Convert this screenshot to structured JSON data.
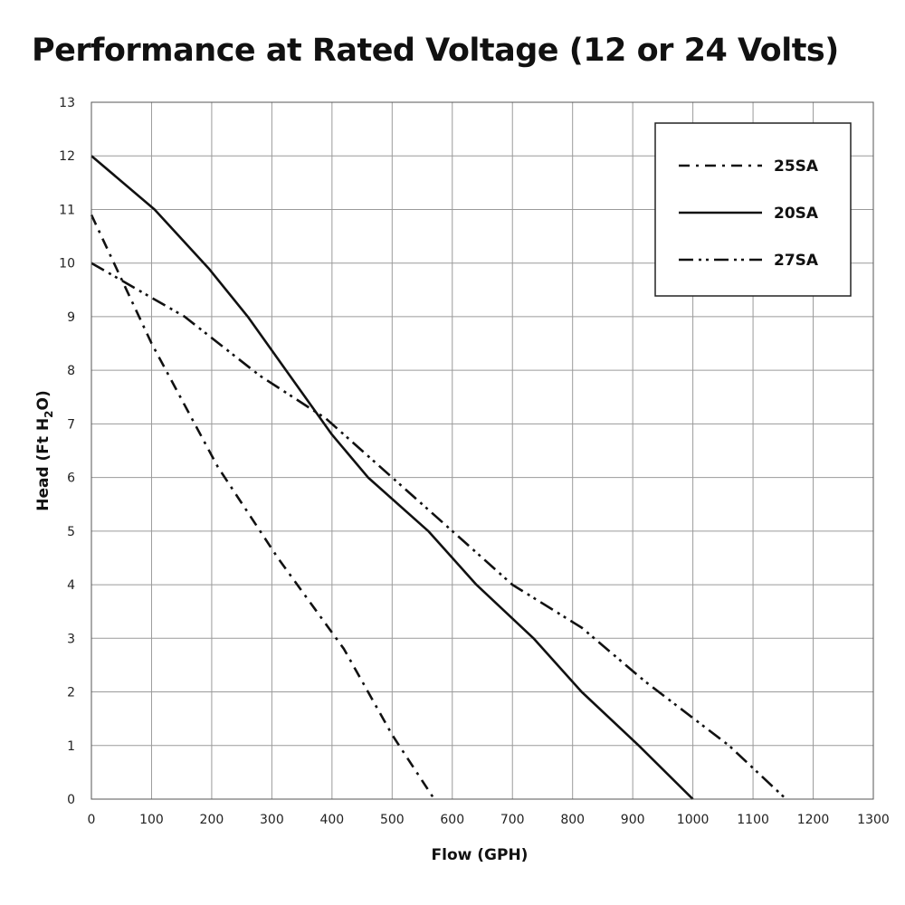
{
  "chart_data": {
    "type": "line",
    "title": "Performance at Rated Voltage (12 or 24 Volts)",
    "xlabel": "Flow (GPH)",
    "ylabel": {
      "prefix": "Head (Ft H",
      "subscript": "2",
      "suffix": "O)"
    },
    "xlim": [
      0,
      1300
    ],
    "ylim": [
      0,
      13
    ],
    "xticks": [
      0,
      100,
      200,
      300,
      400,
      500,
      600,
      700,
      800,
      900,
      1000,
      1100,
      1200,
      1300
    ],
    "yticks": [
      0,
      1,
      2,
      3,
      4,
      5,
      6,
      7,
      8,
      9,
      10,
      11,
      12,
      13
    ],
    "grid": true,
    "legend_position": "top-right",
    "series": [
      {
        "name": "25SA",
        "dash": "dash-dot",
        "points": [
          [
            0,
            10.9
          ],
          [
            100,
            8.5
          ],
          [
            210,
            6.2
          ],
          [
            310,
            4.5
          ],
          [
            420,
            2.8
          ],
          [
            500,
            1.2
          ],
          [
            570,
            0
          ]
        ]
      },
      {
        "name": "20SA",
        "dash": "solid",
        "points": [
          [
            0,
            12
          ],
          [
            105,
            11
          ],
          [
            195,
            9.9
          ],
          [
            260,
            9
          ],
          [
            330,
            7.9
          ],
          [
            400,
            6.8
          ],
          [
            460,
            6
          ],
          [
            560,
            5
          ],
          [
            640,
            4
          ],
          [
            735,
            3
          ],
          [
            815,
            2
          ],
          [
            910,
            1
          ],
          [
            1000,
            0
          ]
        ]
      },
      {
        "name": "27SA",
        "dash": "dash-dot-dot",
        "points": [
          [
            0,
            10
          ],
          [
            155,
            9
          ],
          [
            280,
            7.9
          ],
          [
            390,
            7.1
          ],
          [
            500,
            6
          ],
          [
            600,
            5
          ],
          [
            700,
            4
          ],
          [
            815,
            3.2
          ],
          [
            920,
            2.2
          ],
          [
            1060,
            1
          ],
          [
            1155,
            0
          ]
        ]
      }
    ]
  }
}
